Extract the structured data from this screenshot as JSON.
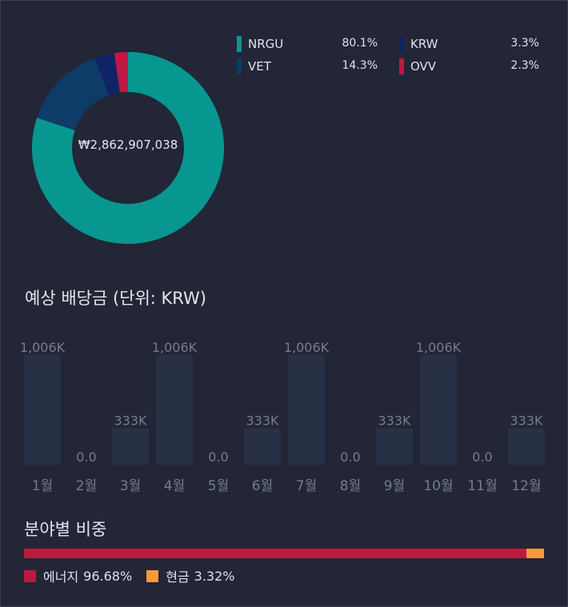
{
  "portfolio": {
    "total": "₩2,862,907,038",
    "holdings": [
      {
        "name": "NRGU",
        "percent": "80.1%",
        "value": 80.1,
        "color": "#079790"
      },
      {
        "name": "VET",
        "percent": "14.3%",
        "value": 14.3,
        "color": "#0c3c67"
      },
      {
        "name": "KRW",
        "percent": "3.3%",
        "value": 3.3,
        "color": "#0f2466"
      },
      {
        "name": "OVV",
        "percent": "2.3%",
        "value": 2.3,
        "color": "#bf1846"
      }
    ]
  },
  "dividends": {
    "title": "예상 배당금 (단위: KRW)"
  },
  "chart_data": {
    "type": "bar",
    "categories": [
      "1월",
      "2월",
      "3월",
      "4월",
      "5월",
      "6월",
      "7월",
      "8월",
      "9월",
      "10월",
      "11월",
      "12월"
    ],
    "values": [
      1006000,
      0,
      333000,
      1006000,
      0,
      333000,
      1006000,
      0,
      333000,
      1006000,
      0,
      333000
    ],
    "labels": [
      "1,006K",
      "0.0",
      "333K",
      "1,006K",
      "0.0",
      "333K",
      "1,006K",
      "0.0",
      "333K",
      "1,006K",
      "0.0",
      "333K"
    ],
    "ylim": [
      0,
      1006000
    ],
    "bar_color": "#283045"
  },
  "sectors": {
    "title": "분야별 비중",
    "items": [
      {
        "name": "에너지",
        "percent": "96.68%",
        "value": 96.68,
        "color": "#c0183f"
      },
      {
        "name": "현금",
        "percent": "3.32%",
        "value": 3.32,
        "color": "#f59b3a"
      }
    ]
  }
}
